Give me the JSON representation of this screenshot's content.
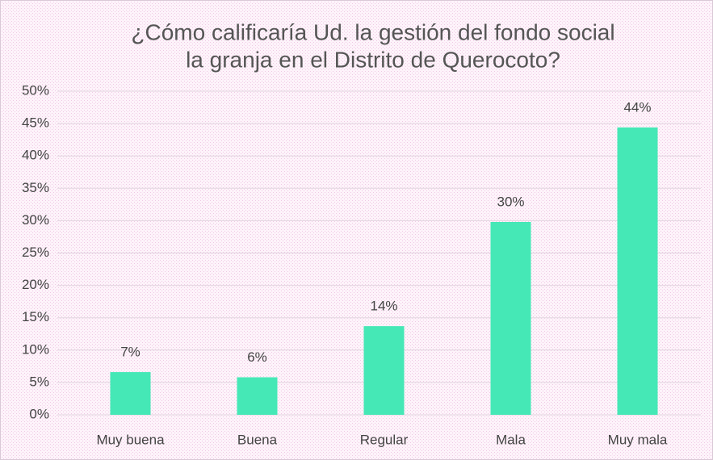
{
  "chart_data": {
    "type": "bar",
    "title": [
      "¿Cómo calificaría Ud. la gestión del fondo social",
      "la granja en el Distrito de Querocoto?"
    ],
    "categories": [
      "Muy buena",
      "Buena",
      "Regular",
      "Mala",
      "Muy mala"
    ],
    "values": [
      6.6,
      5.8,
      13.7,
      29.8,
      44.4
    ],
    "value_labels": [
      "7%",
      "6%",
      "14%",
      "30%",
      "44%"
    ],
    "color": "#45e8b6",
    "ylim": [
      0,
      50
    ],
    "yticks": [
      {
        "value": 0,
        "label": "0%"
      },
      {
        "value": 5,
        "label": "5%"
      },
      {
        "value": 10,
        "label": "10%"
      },
      {
        "value": 15,
        "label": "15%"
      },
      {
        "value": 20,
        "label": "20%"
      },
      {
        "value": 25,
        "label": "25%"
      },
      {
        "value": 30,
        "label": "30%"
      },
      {
        "value": 35,
        "label": "35%"
      },
      {
        "value": 40,
        "label": "40%"
      },
      {
        "value": 45,
        "label": "45%"
      },
      {
        "value": 50,
        "label": "50%"
      }
    ],
    "grid": true
  }
}
